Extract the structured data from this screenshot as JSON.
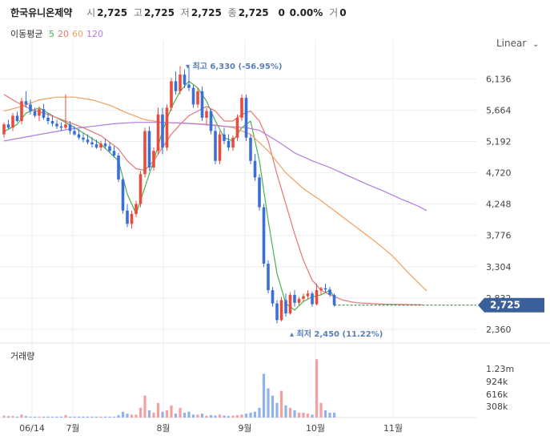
{
  "header": {
    "stock_name": "한국유니온제약",
    "open_label": "시",
    "open": "2,725",
    "high_label": "고",
    "high": "2,725",
    "low_label": "저",
    "low": "2,725",
    "close_label": "종",
    "close": "2,725",
    "change": "0",
    "change_pct": "0.00%",
    "volume_label": "거",
    "volume": "0"
  },
  "ma_legend": {
    "title": "이동평균",
    "periods": [
      {
        "label": "5",
        "color": "#4caf50"
      },
      {
        "label": "20",
        "color": "#e57373"
      },
      {
        "label": "60",
        "color": "#f0a060"
      },
      {
        "label": "120",
        "color": "#b07be0"
      }
    ]
  },
  "scale_select": {
    "value": "Linear"
  },
  "volume_title": "거래량",
  "colors": {
    "up": "#e74c3c",
    "down": "#3a6fd8",
    "current": "#3b5f9a"
  },
  "chart_data": {
    "type": "candlestick",
    "price_axis": {
      "ticks": [
        "6,136",
        "5,664",
        "5,192",
        "4,720",
        "4,248",
        "3,776",
        "3,304",
        "2,832",
        "2,360"
      ],
      "range": [
        2190,
        6600
      ]
    },
    "volume_axis": {
      "ticks": [
        "1.23m",
        "924k",
        "616k",
        "308k"
      ]
    },
    "x_labels": [
      "06/14",
      "7월",
      "8월",
      "9월",
      "10월",
      "11월"
    ],
    "current_price": {
      "label": "2,725",
      "value": 2725
    },
    "high_annotation": {
      "label": "최고",
      "value": "6,330",
      "pct": "(-56.95%)"
    },
    "low_annotation": {
      "label": "최저",
      "value": "2,450",
      "pct": "(11.22%)"
    },
    "candles": [
      [
        5300,
        5480,
        5250,
        5450
      ],
      [
        5450,
        5520,
        5380,
        5400
      ],
      [
        5400,
        5620,
        5350,
        5580
      ],
      [
        5580,
        5640,
        5480,
        5500
      ],
      [
        5500,
        5850,
        5450,
        5800
      ],
      [
        5800,
        5950,
        5700,
        5750
      ],
      [
        5750,
        5820,
        5600,
        5650
      ],
      [
        5650,
        5700,
        5550,
        5580
      ],
      [
        5580,
        5720,
        5500,
        5680
      ],
      [
        5680,
        5760,
        5520,
        5550
      ],
      [
        5550,
        5620,
        5450,
        5500
      ],
      [
        5500,
        5580,
        5420,
        5460
      ],
      [
        5460,
        5520,
        5380,
        5420
      ],
      [
        5420,
        5480,
        5350,
        5400
      ],
      [
        5400,
        5900,
        5380,
        5450
      ],
      [
        5450,
        5500,
        5300,
        5350
      ],
      [
        5350,
        5420,
        5280,
        5300
      ],
      [
        5300,
        5380,
        5220,
        5250
      ],
      [
        5250,
        5320,
        5180,
        5220
      ],
      [
        5220,
        5300,
        5150,
        5180
      ],
      [
        5180,
        5260,
        5100,
        5150
      ],
      [
        5150,
        5220,
        5080,
        5100
      ],
      [
        5100,
        5200,
        5050,
        5160
      ],
      [
        5160,
        5230,
        5080,
        5120
      ],
      [
        5120,
        5180,
        5020,
        5050
      ],
      [
        5050,
        5120,
        4950,
        4980
      ],
      [
        4980,
        5020,
        4580,
        4620
      ],
      [
        4620,
        4650,
        4100,
        4150
      ],
      [
        4150,
        4250,
        3900,
        3950
      ],
      [
        3950,
        4150,
        3880,
        4100
      ],
      [
        4100,
        4300,
        4050,
        4250
      ],
      [
        4250,
        4750,
        4200,
        4700
      ],
      [
        4700,
        5400,
        4650,
        5350
      ],
      [
        5350,
        5420,
        4750,
        4800
      ],
      [
        4800,
        5100,
        4750,
        5050
      ],
      [
        5050,
        5700,
        5000,
        5600
      ],
      [
        5600,
        5700,
        5000,
        5100
      ],
      [
        5100,
        5750,
        5050,
        5700
      ],
      [
        5700,
        6150,
        5650,
        6100
      ],
      [
        6100,
        6250,
        5900,
        5950
      ],
      [
        5950,
        6330,
        5900,
        6200
      ],
      [
        6200,
        6280,
        6000,
        6050
      ],
      [
        6050,
        6320,
        5950,
        6000
      ],
      [
        6000,
        6050,
        5700,
        5750
      ],
      [
        5750,
        6000,
        5700,
        5950
      ],
      [
        5950,
        6020,
        5500,
        5550
      ],
      [
        5550,
        5700,
        5450,
        5650
      ],
      [
        5650,
        5680,
        5300,
        5350
      ],
      [
        5350,
        5420,
        4850,
        4900
      ],
      [
        4900,
        5350,
        4850,
        5300
      ],
      [
        5300,
        5400,
        5150,
        5200
      ],
      [
        5200,
        5300,
        5050,
        5100
      ],
      [
        5100,
        5280,
        5050,
        5250
      ],
      [
        5250,
        5600,
        5200,
        5550
      ],
      [
        5550,
        5900,
        5500,
        5850
      ],
      [
        5850,
        5900,
        5200,
        5250
      ],
      [
        5250,
        5300,
        4850,
        4900
      ],
      [
        4900,
        5000,
        4600,
        4650
      ],
      [
        4650,
        4700,
        4150,
        4200
      ],
      [
        4200,
        4250,
        3300,
        3350
      ],
      [
        3350,
        3400,
        2900,
        2950
      ],
      [
        2950,
        3000,
        2700,
        2750
      ],
      [
        2750,
        2800,
        2450,
        2500
      ],
      [
        2500,
        2850,
        2480,
        2800
      ],
      [
        2800,
        2900,
        2550,
        2600
      ],
      [
        2600,
        2920,
        2580,
        2880
      ],
      [
        2880,
        2950,
        2700,
        2760
      ],
      [
        2760,
        2850,
        2720,
        2820
      ],
      [
        2820,
        2900,
        2780,
        2860
      ],
      [
        2860,
        2950,
        2820,
        2900
      ],
      [
        2900,
        2930,
        2700,
        2740
      ],
      [
        2740,
        3050,
        2720,
        2950
      ],
      [
        2950,
        3000,
        2880,
        2980
      ],
      [
        2980,
        3050,
        2920,
        2960
      ],
      [
        2960,
        3000,
        2850,
        2880
      ],
      [
        2880,
        2900,
        2700,
        2725
      ]
    ],
    "volume": [
      0.04,
      0.03,
      0.03,
      0.02,
      0.06,
      0.03,
      0.02,
      0.02,
      0.02,
      0.02,
      0.02,
      0.02,
      0.02,
      0.02,
      0.05,
      0.02,
      0.02,
      0.02,
      0.02,
      0.02,
      0.02,
      0.02,
      0.02,
      0.02,
      0.02,
      0.02,
      0.05,
      0.12,
      0.08,
      0.06,
      0.06,
      0.2,
      0.45,
      0.15,
      0.1,
      0.3,
      0.12,
      0.15,
      0.25,
      0.08,
      0.2,
      0.1,
      0.12,
      0.06,
      0.06,
      0.08,
      0.04,
      0.05,
      0.04,
      0.06,
      0.04,
      0.03,
      0.04,
      0.05,
      0.06,
      0.08,
      0.1,
      0.12,
      0.2,
      0.9,
      0.6,
      0.45,
      0.3,
      0.55,
      0.25,
      0.2,
      0.15,
      0.1,
      0.1,
      0.08,
      0.06,
      1.2,
      0.3,
      0.15,
      0.1,
      0.1
    ],
    "volume_max": 1.5,
    "ma5": [
      [
        0,
        5340
      ],
      [
        3,
        5450
      ],
      [
        5,
        5620
      ],
      [
        8,
        5700
      ],
      [
        11,
        5580
      ],
      [
        14,
        5480
      ],
      [
        18,
        5320
      ],
      [
        22,
        5150
      ],
      [
        26,
        4900
      ],
      [
        28,
        4400
      ],
      [
        30,
        4100
      ],
      [
        32,
        4500
      ],
      [
        34,
        4900
      ],
      [
        36,
        5350
      ],
      [
        38,
        5700
      ],
      [
        40,
        5950
      ],
      [
        42,
        6100
      ],
      [
        44,
        6000
      ],
      [
        46,
        5800
      ],
      [
        48,
        5500
      ],
      [
        50,
        5250
      ],
      [
        52,
        5200
      ],
      [
        54,
        5400
      ],
      [
        56,
        5500
      ],
      [
        58,
        4900
      ],
      [
        60,
        4000
      ],
      [
        62,
        3200
      ],
      [
        64,
        2750
      ],
      [
        66,
        2650
      ],
      [
        68,
        2780
      ],
      [
        70,
        2850
      ],
      [
        72,
        2880
      ],
      [
        74,
        2950
      ],
      [
        75,
        2850
      ]
    ],
    "ma20": [
      [
        0,
        5900
      ],
      [
        3,
        5780
      ],
      [
        6,
        5680
      ],
      [
        10,
        5600
      ],
      [
        14,
        5500
      ],
      [
        18,
        5400
      ],
      [
        22,
        5280
      ],
      [
        26,
        5080
      ],
      [
        28,
        4900
      ],
      [
        30,
        4780
      ],
      [
        32,
        4760
      ],
      [
        34,
        4900
      ],
      [
        36,
        5100
      ],
      [
        38,
        5300
      ],
      [
        40,
        5450
      ],
      [
        42,
        5580
      ],
      [
        44,
        5650
      ],
      [
        46,
        5720
      ],
      [
        48,
        5650
      ],
      [
        50,
        5500
      ],
      [
        52,
        5500
      ],
      [
        54,
        5600
      ],
      [
        56,
        5650
      ],
      [
        58,
        5500
      ],
      [
        60,
        5200
      ],
      [
        62,
        4700
      ],
      [
        64,
        4250
      ],
      [
        66,
        3800
      ],
      [
        68,
        3400
      ],
      [
        70,
        3100
      ],
      [
        72,
        2950
      ],
      [
        74,
        2880
      ],
      [
        77,
        2800
      ],
      [
        80,
        2760
      ],
      [
        86,
        2740
      ],
      [
        95,
        2730
      ]
    ],
    "ma60": [
      [
        0,
        5650
      ],
      [
        4,
        5720
      ],
      [
        8,
        5820
      ],
      [
        12,
        5860
      ],
      [
        16,
        5860
      ],
      [
        20,
        5820
      ],
      [
        24,
        5740
      ],
      [
        28,
        5620
      ],
      [
        32,
        5520
      ],
      [
        36,
        5480
      ],
      [
        40,
        5470
      ],
      [
        44,
        5460
      ],
      [
        48,
        5440
      ],
      [
        52,
        5400
      ],
      [
        56,
        5300
      ],
      [
        60,
        5050
      ],
      [
        64,
        4720
      ],
      [
        68,
        4480
      ],
      [
        72,
        4300
      ],
      [
        76,
        4100
      ],
      [
        80,
        3900
      ],
      [
        84,
        3700
      ],
      [
        88,
        3480
      ],
      [
        92,
        3200
      ],
      [
        96,
        2940
      ]
    ],
    "ma120": [
      [
        0,
        5200
      ],
      [
        5,
        5260
      ],
      [
        10,
        5320
      ],
      [
        15,
        5380
      ],
      [
        20,
        5420
      ],
      [
        25,
        5460
      ],
      [
        30,
        5480
      ],
      [
        35,
        5480
      ],
      [
        40,
        5470
      ],
      [
        45,
        5450
      ],
      [
        50,
        5420
      ],
      [
        55,
        5400
      ],
      [
        58,
        5360
      ],
      [
        62,
        5200
      ],
      [
        66,
        5020
      ],
      [
        70,
        4900
      ],
      [
        74,
        4800
      ],
      [
        78,
        4680
      ],
      [
        82,
        4560
      ],
      [
        86,
        4450
      ],
      [
        90,
        4330
      ],
      [
        94,
        4220
      ],
      [
        96,
        4150
      ]
    ]
  }
}
